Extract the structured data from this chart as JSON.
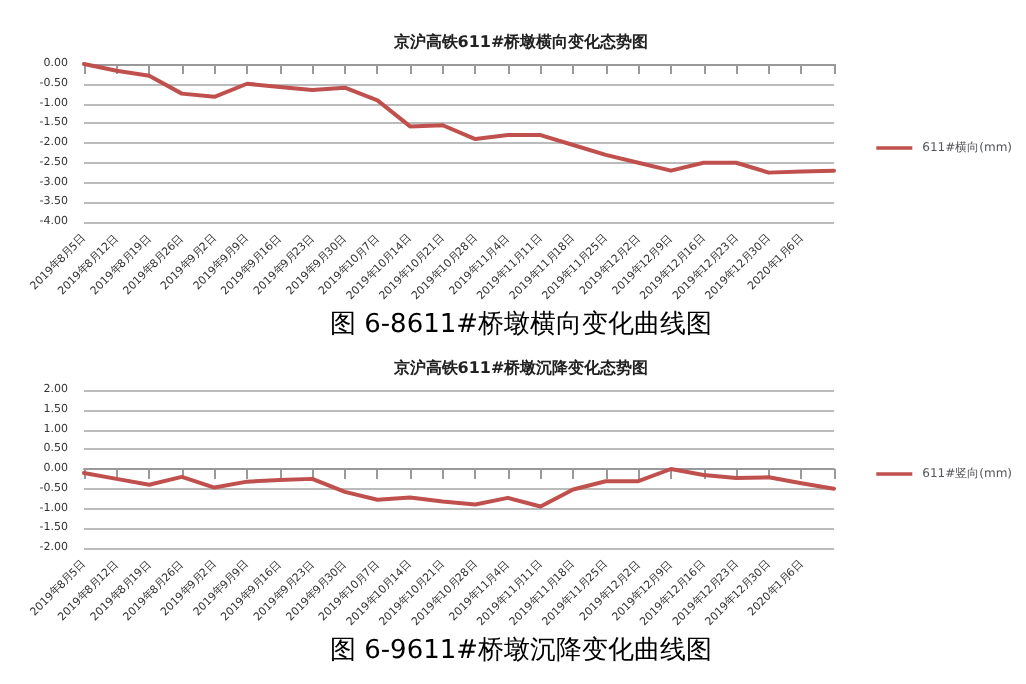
{
  "chart_data": [
    {
      "type": "line",
      "title": "京沪高铁611#桥墩横向变化态势图",
      "annotations": [
        "图 6-8611#桥墩横向变化曲线图"
      ],
      "categories": [
        "2019年8月5日",
        "2019年8月12日",
        "2019年8月19日",
        "2019年8月26日",
        "2019年9月2日",
        "2019年9月9日",
        "2019年9月16日",
        "2019年9月23日",
        "2019年9月30日",
        "2019年10月7日",
        "2019年10月14日",
        "2019年10月21日",
        "2019年10月28日",
        "2019年11月4日",
        "2019年11月11日",
        "2019年11月18日",
        "2019年11月25日",
        "2019年12月2日",
        "2019年12月9日",
        "2019年12月16日",
        "2019年12月23日",
        "2019年12月30日",
        "2020年1月6日",
        null
      ],
      "series": [
        {
          "name": "611#横向(mm)",
          "color": "#c0504d",
          "values": [
            0,
            -0.17,
            -0.3,
            -0.75,
            -0.83,
            -0.5,
            -0.58,
            -0.66,
            -0.6,
            -0.92,
            -1.58,
            -1.55,
            -1.9,
            -1.8,
            -1.8,
            -2.05,
            -2.3,
            -2.5,
            -2.7,
            -2.5,
            -2.5,
            -2.75,
            -2.72,
            -2.7
          ]
        }
      ],
      "ylim": [
        -4,
        0
      ],
      "yticks": [
        {
          "value": -4,
          "label": "-4.00"
        },
        {
          "value": -3.5,
          "label": "-3.50"
        },
        {
          "value": -3,
          "label": "-3.00"
        },
        {
          "value": -2.5,
          "label": "-2.50"
        },
        {
          "value": -2,
          "label": "-2.00"
        },
        {
          "value": -1.5,
          "label": "-1.50"
        },
        {
          "value": -1,
          "label": "-1.00"
        },
        {
          "value": -0.5,
          "label": "-0.50"
        },
        {
          "value": 0,
          "label": "0.00"
        }
      ],
      "grid": "y",
      "legend": "right",
      "marker": "none",
      "line_style": "solid"
    },
    {
      "type": "line",
      "title": "京沪高铁611#桥墩沉降变化态势图",
      "annotations": [
        "图 6-9611#桥墩沉降变化曲线图"
      ],
      "categories": [
        "2019年8月5日",
        "2019年8月12日",
        "2019年8月19日",
        "2019年8月26日",
        "2019年9月2日",
        "2019年9月9日",
        "2019年9月16日",
        "2019年9月23日",
        "2019年9月30日",
        "2019年10月7日",
        "2019年10月14日",
        "2019年10月21日",
        "2019年10月28日",
        "2019年11月4日",
        "2019年11月11日",
        "2019年11月18日",
        "2019年11月25日",
        "2019年12月2日",
        "2019年12月9日",
        "2019年12月16日",
        "2019年12月23日",
        "2019年12月30日",
        "2020年1月6日",
        null
      ],
      "series": [
        {
          "name": "611#竖向(mm)",
          "color": "#c0504d",
          "values": [
            -0.1,
            -0.25,
            -0.4,
            -0.2,
            -0.47,
            -0.32,
            -0.28,
            -0.25,
            -0.58,
            -0.78,
            -0.72,
            -0.82,
            -0.9,
            -0.73,
            -0.95,
            -0.52,
            -0.31,
            -0.31,
            0,
            -0.15,
            -0.23,
            -0.21,
            -0.36,
            -0.5
          ]
        }
      ],
      "ylim": [
        -2,
        2
      ],
      "yticks": [
        {
          "value": -2,
          "label": "-2.00"
        },
        {
          "value": -1.5,
          "label": "-1.50"
        },
        {
          "value": -1,
          "label": "-1.00"
        },
        {
          "value": -0.5,
          "label": "-0.50"
        },
        {
          "value": 0,
          "label": "0.00"
        },
        {
          "value": 0.5,
          "label": "0.50"
        },
        {
          "value": 1,
          "label": "1.00"
        },
        {
          "value": 1.5,
          "label": "1.50"
        },
        {
          "value": 2,
          "label": "2.00"
        }
      ],
      "grid": "y",
      "legend": "right",
      "marker": "none",
      "line_style": "solid"
    }
  ]
}
